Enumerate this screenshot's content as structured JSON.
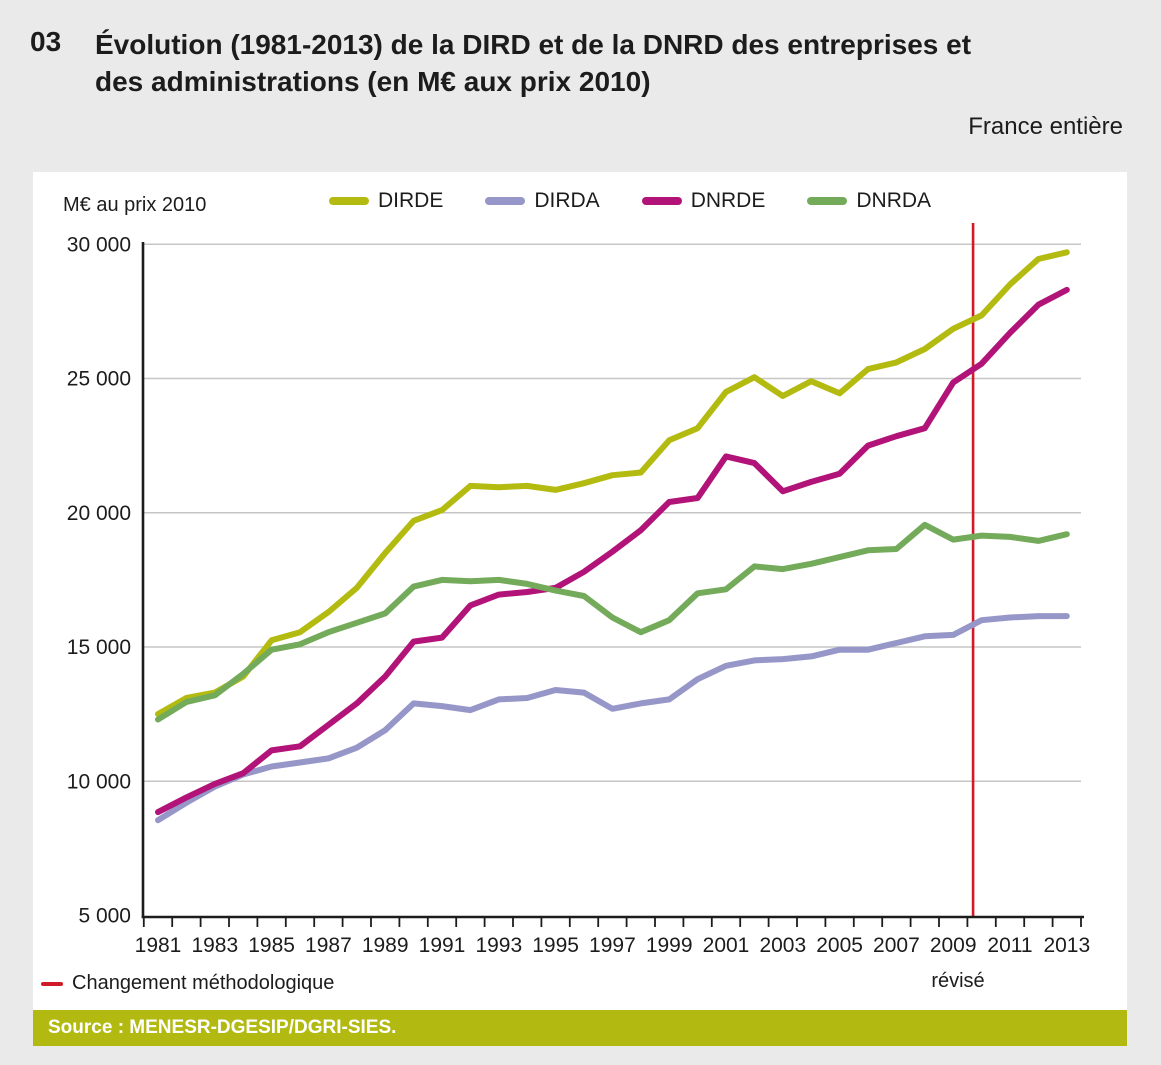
{
  "header": {
    "figure_number": "03",
    "title_line1": "Évolution (1981-2013) de la DIRD et de la DNRD des entreprises et",
    "title_line2": "des administrations (en M€ aux prix 2010)",
    "region_label": "France entière"
  },
  "chart": {
    "y_axis_label": "M€ au prix 2010",
    "revised_label": "révisé",
    "method_change_label": "Changement méthodologique",
    "source": "Source : MENESR-DGESIP/DGRI-SIES.",
    "colors": {
      "background": "#eaeaea",
      "panel": "#ffffff",
      "source_bar": "#b2ba12",
      "gridline": "#c6c6c6",
      "axis": "#1c1c1c",
      "method_change_line": "#d11a28"
    }
  },
  "chart_data": {
    "type": "line",
    "title": "Évolution (1981-2013) de la DIRD et de la DNRD des entreprises et des administrations (en M€ aux prix 2010)",
    "ylabel": "M€ au prix 2010",
    "legend_position": "top",
    "grid": "horizontal",
    "ylim": [
      5000,
      30500
    ],
    "x": [
      1981,
      1982,
      1983,
      1984,
      1985,
      1986,
      1987,
      1988,
      1989,
      1990,
      1991,
      1992,
      1993,
      1994,
      1995,
      1996,
      1997,
      1998,
      1999,
      2000,
      2001,
      2002,
      2003,
      2004,
      2005,
      2006,
      2007,
      2008,
      2009,
      2010,
      2011,
      2012,
      2013
    ],
    "x_tick_labels": [
      "1981",
      "1983",
      "1985",
      "1987",
      "1989",
      "1991",
      "1993",
      "1995",
      "1997",
      "1999",
      "2001",
      "2003",
      "2005",
      "2007",
      "2009",
      "2011",
      "2013"
    ],
    "yticks": [
      {
        "value": 30000,
        "label": "30 000"
      },
      {
        "value": 25000,
        "label": "25 000"
      },
      {
        "value": 20000,
        "label": "20 000"
      },
      {
        "value": 15000,
        "label": "15 000"
      },
      {
        "value": 10000,
        "label": "10 000"
      },
      {
        "value": 5000,
        "label": "5 000"
      }
    ],
    "series": [
      {
        "name": "DIRDE",
        "color": "#b4bb10",
        "values": [
          12500,
          13100,
          13300,
          13900,
          15250,
          15550,
          16300,
          17200,
          18500,
          19700,
          20100,
          21000,
          20950,
          21000,
          20850,
          21100,
          21400,
          21500,
          22700,
          23150,
          24500,
          25050,
          24350,
          24900,
          24450,
          25350,
          25600,
          26100,
          26850,
          27350,
          28500,
          29450,
          29700
        ]
      },
      {
        "name": "DIRDA",
        "color": "#9697c8",
        "values": [
          8550,
          9200,
          9800,
          10250,
          10550,
          10700,
          10850,
          11250,
          11900,
          12900,
          12800,
          12650,
          13050,
          13100,
          13400,
          13300,
          12700,
          12900,
          13050,
          13800,
          14300,
          14500,
          14550,
          14650,
          14900,
          14900,
          15150,
          15400,
          15450,
          16000,
          16100,
          16150,
          16150
        ]
      },
      {
        "name": "DNRDE",
        "color": "#b21378",
        "values": [
          8850,
          9400,
          9900,
          10300,
          11150,
          11300,
          12100,
          12900,
          13900,
          15200,
          15350,
          16550,
          16950,
          17050,
          17200,
          17800,
          18550,
          19350,
          20400,
          20550,
          22100,
          21850,
          20800,
          21150,
          21450,
          22500,
          22850,
          23150,
          24850,
          25550,
          26700,
          27750,
          28300
        ]
      },
      {
        "name": "DNRDA",
        "color": "#74ab5b",
        "values": [
          12300,
          12950,
          13200,
          14000,
          14900,
          15100,
          15550,
          15900,
          16250,
          17250,
          17500,
          17450,
          17500,
          17350,
          17100,
          16900,
          16100,
          15550,
          16000,
          17000,
          17150,
          18000,
          17900,
          18100,
          18350,
          18600,
          18650,
          19550,
          19000,
          19150,
          19100,
          18950,
          19200
        ]
      }
    ],
    "vline": {
      "x": 2009.7,
      "color": "#d11a28",
      "label": "Changement méthodologique",
      "note": "révisé"
    }
  }
}
